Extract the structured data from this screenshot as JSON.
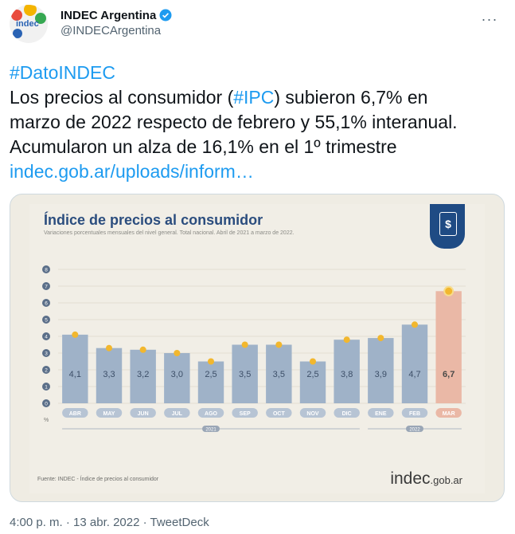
{
  "header": {
    "display_name": "INDEC Argentina",
    "handle": "@INDECArgentina",
    "avatar_text": "indec",
    "more_label": "···"
  },
  "tweet": {
    "line1_hashtag": "#DatoINDEC",
    "line2_pre": "Los precios al consumidor (",
    "line2_hashtag": "#IPC",
    "line2_post": ") subieron 6,7% en",
    "line3": "marzo de 2022 respecto de febrero y 55,1% interanual.",
    "line4": "Acumularon un alza de 16,1% en el 1º trimestre",
    "link": "indec.gob.ar/uploads/inform…"
  },
  "poster": {
    "title": "Índice de precios al consumidor",
    "subtitle": "Variaciones porcentuales mensuales del nivel general. Total nacional. Abril de 2021 a marzo de 2022.",
    "source": "Fuente: INDEC - Índice de precios al consumidor",
    "logo_main": "indec",
    "logo_suffix": ".gob.ar",
    "badge_symbol": "$"
  },
  "chart_data": {
    "type": "bar",
    "categories": [
      "ABR",
      "MAY",
      "JUN",
      "JUL",
      "AGO",
      "SEP",
      "OCT",
      "NOV",
      "DIC",
      "ENE",
      "FEB",
      "MAR"
    ],
    "values": [
      4.1,
      3.3,
      3.2,
      3.0,
      2.5,
      3.5,
      3.5,
      2.5,
      3.8,
      3.9,
      4.7,
      6.7
    ],
    "value_labels": [
      "4,1",
      "3,3",
      "3,2",
      "3,0",
      "2,5",
      "3,5",
      "3,5",
      "2,5",
      "3,8",
      "3,9",
      "4,7",
      "6,7"
    ],
    "ylim": [
      0,
      8
    ],
    "yticks": [
      0,
      1,
      2,
      3,
      4,
      5,
      6,
      7,
      8
    ],
    "ylabel": "%",
    "year_groups": [
      {
        "label": "2021",
        "from": 0,
        "to": 8
      },
      {
        "label": "2022",
        "from": 9,
        "to": 11
      }
    ],
    "bar_color": "#9fb2c8",
    "highlight_color": "#eab8a6",
    "marker_color": "#f2b72e"
  },
  "meta": {
    "timestamp": "4:00 p. m. · 13 abr. 2022 · TweetDeck"
  }
}
